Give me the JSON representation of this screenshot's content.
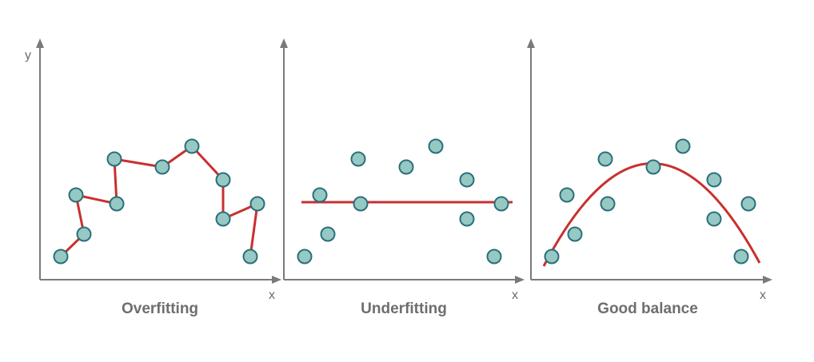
{
  "colors": {
    "axis": "#7a7a7a",
    "point_fill": "#96c8c4",
    "point_stroke": "#2a6f78",
    "fit_line": "#c8302f",
    "label": "#6e6e6e"
  },
  "panels": [
    {
      "caption": "Overfitting",
      "y_label": "y",
      "x_label": "x",
      "fit": "interpolating-polyline"
    },
    {
      "caption": "Underfitting",
      "y_label": "",
      "x_label": "x",
      "fit": "horizontal-line"
    },
    {
      "caption": "Good balance",
      "y_label": "",
      "x_label": "x",
      "fit": "parabola"
    }
  ]
}
